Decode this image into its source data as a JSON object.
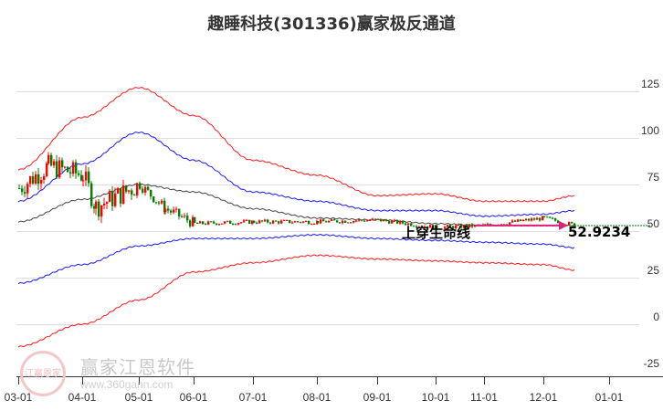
{
  "title": "趣睡科技(301336)赢家极反通道",
  "annotation": "上穿生命线",
  "price_label": "52.9234",
  "watermark": {
    "text": "赢家江恩软件",
    "url": "www.360gann.com",
    "logo": "江赢恩家"
  },
  "colors": {
    "outer_band": "#ff0000",
    "inner_band": "#0000ff",
    "mid_line": "#333333",
    "up_candle": "#ff0000",
    "down_candle": "#008000",
    "arrow": "#e0207a",
    "price_line": "#008000"
  },
  "chart_data": {
    "type": "candlestick",
    "title": "趣睡科技(301336)赢家极反通道",
    "xlabel": "",
    "ylabel": "",
    "ylim": [
      -25,
      125
    ],
    "y_ticks": [
      125,
      100,
      75,
      50,
      25,
      0,
      -25
    ],
    "x_ticks": [
      "03-01",
      "04-01",
      "05-01",
      "06-01",
      "07-01",
      "08-01",
      "09-01",
      "10-01",
      "11-01",
      "12-01",
      "01-01"
    ],
    "grid": true,
    "annotations": [
      {
        "text": "上穿生命线",
        "x": "10-01",
        "y": 53
      },
      {
        "text": "52.9234",
        "x": "12-20",
        "y": 52.9
      }
    ],
    "series": [
      {
        "name": "outer_upper",
        "color": "#ff0000",
        "x": [
          "03-01",
          "04-01",
          "05-01",
          "06-01",
          "07-01",
          "08-01",
          "09-01",
          "10-01",
          "11-01",
          "12-01",
          "12-20"
        ],
        "values": [
          83,
          111,
          127,
          112,
          88,
          80,
          69,
          70,
          66,
          66,
          69
        ]
      },
      {
        "name": "inner_upper",
        "color": "#0000ff",
        "x": [
          "03-01",
          "04-01",
          "05-01",
          "06-01",
          "07-01",
          "08-01",
          "09-01",
          "10-01",
          "11-01",
          "12-01",
          "12-20"
        ],
        "values": [
          66,
          86,
          103,
          88,
          71,
          66,
          61,
          61,
          58,
          59,
          61
        ]
      },
      {
        "name": "mid_line",
        "color": "#333333",
        "x": [
          "03-01",
          "04-01",
          "05-01",
          "06-01",
          "07-01",
          "08-01",
          "09-01",
          "10-01",
          "11-01",
          "12-01",
          "12-20"
        ],
        "values": [
          55,
          67,
          75,
          71,
          62,
          57,
          56,
          54,
          53,
          53,
          53
        ]
      },
      {
        "name": "inner_lower",
        "color": "#0000ff",
        "x": [
          "03-01",
          "04-01",
          "05-01",
          "06-01",
          "07-01",
          "08-01",
          "09-01",
          "10-01",
          "11-01",
          "12-01",
          "12-20"
        ],
        "values": [
          22,
          32,
          42,
          46,
          46,
          48,
          46,
          45,
          44,
          43,
          41
        ]
      },
      {
        "name": "outer_lower",
        "color": "#ff0000",
        "x": [
          "03-01",
          "04-01",
          "05-01",
          "06-01",
          "07-01",
          "08-01",
          "09-01",
          "10-01",
          "11-01",
          "12-01",
          "12-20"
        ],
        "values": [
          -12,
          0,
          13,
          28,
          33,
          37,
          35,
          34,
          33,
          32,
          29
        ]
      },
      {
        "name": "close",
        "color": "#000000",
        "x": [
          "03-01",
          "03-15",
          "04-01",
          "04-10",
          "05-01",
          "05-15",
          "06-01",
          "07-01",
          "08-01",
          "09-01",
          "10-01",
          "11-01",
          "12-01",
          "12-20"
        ],
        "values": [
          73,
          85,
          80,
          63,
          75,
          62,
          54,
          55,
          55,
          56,
          52,
          53,
          57,
          53
        ]
      }
    ]
  }
}
